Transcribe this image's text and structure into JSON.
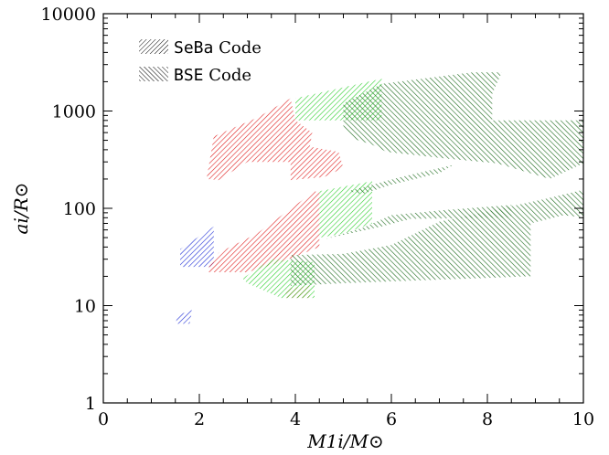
{
  "chart_data": {
    "type": "area",
    "xlabel": "M1i/M⊙",
    "ylabel": "ai/R⊙",
    "xlim": [
      0,
      10
    ],
    "ylim": [
      1,
      10000
    ],
    "yscale": "log",
    "x_ticks": [
      "0",
      "2",
      "4",
      "6",
      "8",
      "10"
    ],
    "y_ticks": [
      "1",
      "10",
      "100",
      "1000",
      "10000"
    ],
    "legend": {
      "placement": "top-left",
      "entries": [
        {
          "code": "SeBa",
          "text": " Code",
          "hatch": "forward"
        },
        {
          "code": "BSE",
          "text": " Code",
          "hatch": "backward"
        }
      ]
    },
    "colors": {
      "blue": "#1f2fd6",
      "red": "#e02020",
      "green": "#30d030",
      "darkgreen": "#1c6a1c"
    },
    "regions": [
      {
        "color": "blue",
        "hatch": "forward",
        "points": [
          [
            1.6,
            25
          ],
          [
            2.3,
            25
          ],
          [
            2.3,
            65
          ],
          [
            1.6,
            38
          ]
        ]
      },
      {
        "color": "blue",
        "hatch": "forward",
        "points": [
          [
            1.5,
            6.5
          ],
          [
            1.8,
            6.5
          ],
          [
            1.85,
            9
          ],
          [
            1.55,
            8
          ]
        ]
      },
      {
        "color": "red",
        "hatch": "forward",
        "points": [
          [
            2.15,
            200
          ],
          [
            2.3,
            550
          ],
          [
            3.2,
            850
          ],
          [
            3.9,
            1350
          ],
          [
            4.0,
            800
          ],
          [
            4.35,
            600
          ],
          [
            4.3,
            430
          ],
          [
            4.9,
            380
          ],
          [
            5.0,
            260
          ],
          [
            4.6,
            210
          ],
          [
            3.9,
            195
          ],
          [
            3.9,
            300
          ],
          [
            3.0,
            300
          ],
          [
            2.4,
            195
          ]
        ]
      },
      {
        "color": "red",
        "hatch": "forward",
        "points": [
          [
            2.2,
            25
          ],
          [
            2.4,
            35
          ],
          [
            3.2,
            55
          ],
          [
            4.4,
            150
          ],
          [
            4.5,
            145
          ],
          [
            4.5,
            40
          ],
          [
            3.7,
            28
          ],
          [
            3.0,
            22
          ],
          [
            2.2,
            22
          ]
        ]
      },
      {
        "color": "red",
        "hatch": "forward",
        "points": [
          [
            3.8,
            12
          ],
          [
            4.3,
            12
          ],
          [
            4.3,
            16
          ],
          [
            3.8,
            15
          ]
        ]
      },
      {
        "color": "green",
        "hatch": "forward",
        "points": [
          [
            4.0,
            1350
          ],
          [
            5.8,
            2150
          ],
          [
            5.8,
            800
          ],
          [
            4.0,
            800
          ]
        ]
      },
      {
        "color": "green",
        "hatch": "forward",
        "points": [
          [
            4.5,
            50
          ],
          [
            4.5,
            150
          ],
          [
            5.6,
            190
          ],
          [
            5.6,
            70
          ],
          [
            5.0,
            55
          ]
        ]
      },
      {
        "color": "green",
        "hatch": "forward",
        "points": [
          [
            2.9,
            19
          ],
          [
            3.5,
            30
          ],
          [
            4.4,
            28
          ],
          [
            4.4,
            12
          ],
          [
            3.7,
            12
          ],
          [
            3.0,
            17
          ]
        ]
      },
      {
        "color": "darkgreen",
        "hatch": "backward",
        "points": [
          [
            5.0,
            1200
          ],
          [
            5.8,
            1900
          ],
          [
            7.7,
            2500
          ],
          [
            8.3,
            2500
          ],
          [
            8.1,
            1500
          ],
          [
            8.1,
            800
          ],
          [
            10.0,
            800
          ],
          [
            10.0,
            290
          ],
          [
            9.3,
            200
          ],
          [
            8.2,
            290
          ],
          [
            7.0,
            330
          ],
          [
            5.9,
            380
          ],
          [
            5.6,
            450
          ],
          [
            5.2,
            520
          ],
          [
            5.0,
            700
          ]
        ]
      },
      {
        "color": "darkgreen",
        "hatch": "backward",
        "points": [
          [
            3.9,
            33
          ],
          [
            5.0,
            34
          ],
          [
            6.0,
            42
          ],
          [
            7.0,
            73
          ],
          [
            8.5,
            105
          ],
          [
            9.2,
            125
          ],
          [
            10.0,
            155
          ],
          [
            10.0,
            80
          ],
          [
            9.6,
            85
          ],
          [
            8.9,
            70
          ],
          [
            8.9,
            20
          ],
          [
            5.0,
            17
          ],
          [
            3.9,
            16
          ]
        ]
      },
      {
        "color": "darkgreen",
        "hatch": "backward",
        "points": [
          [
            4.6,
            48
          ],
          [
            5.4,
            63
          ],
          [
            6.0,
            85
          ],
          [
            7.0,
            95
          ],
          [
            8.5,
            108
          ],
          [
            8.5,
            80
          ],
          [
            6.4,
            78
          ],
          [
            5.8,
            65
          ]
        ]
      },
      {
        "color": "darkgreen",
        "hatch": "backward",
        "points": [
          [
            5.1,
            150
          ],
          [
            6.2,
            210
          ],
          [
            7.3,
            280
          ],
          [
            7.0,
            230
          ],
          [
            6.0,
            175
          ],
          [
            5.4,
            140
          ]
        ]
      }
    ]
  }
}
